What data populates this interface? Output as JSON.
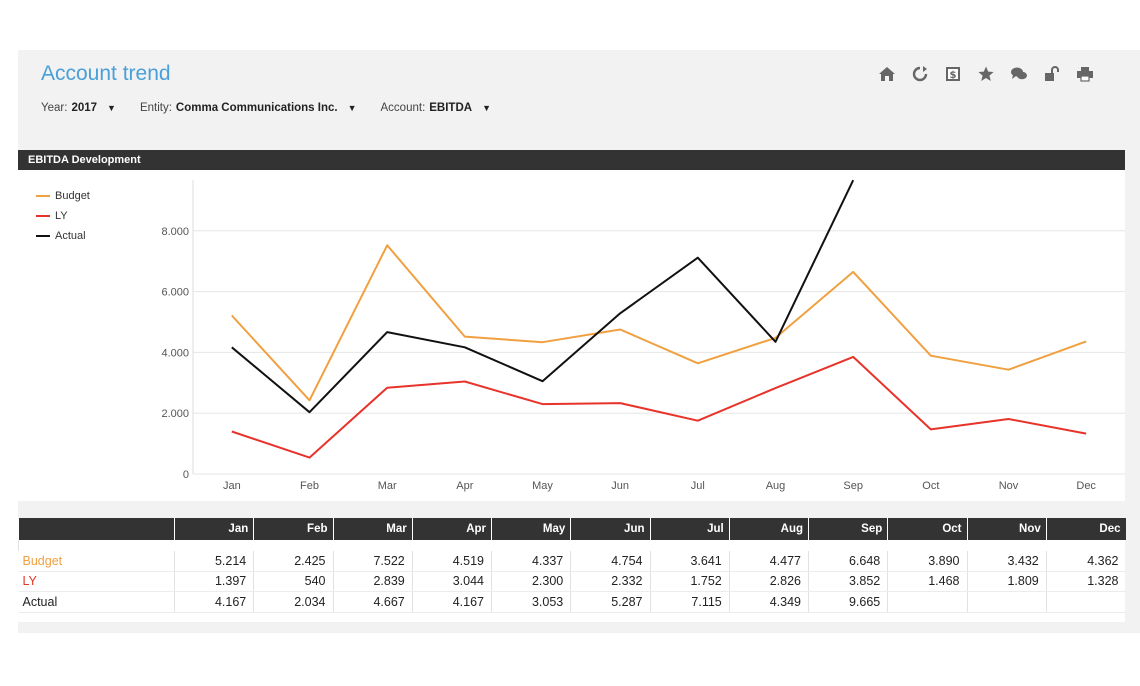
{
  "header": {
    "title": "Account trend",
    "filters": [
      {
        "label": "Year:",
        "value": "2017"
      },
      {
        "label": "Entity:",
        "value": "Comma Communications Inc."
      },
      {
        "label": "Account:",
        "value": "EBITDA"
      }
    ],
    "toolbar_icons": [
      "home-icon",
      "refresh-icon",
      "dollar-icon",
      "star-icon",
      "comments-icon",
      "unlock-icon",
      "print-icon"
    ]
  },
  "chart_section": {
    "title": "EBITDA Development"
  },
  "colors": {
    "title": "#4a9fd8",
    "budget": "#f0a040",
    "ly": "#e8332a",
    "actual": "#111111",
    "header_bg": "#333333"
  },
  "chart_data": {
    "type": "line",
    "categories": [
      "Jan",
      "Feb",
      "Mar",
      "Apr",
      "May",
      "Jun",
      "Jul",
      "Aug",
      "Sep",
      "Oct",
      "Nov",
      "Dec"
    ],
    "series": [
      {
        "name": "Budget",
        "values": [
          5214,
          2425,
          7522,
          4519,
          4337,
          4754,
          3641,
          4477,
          6648,
          3890,
          3432,
          4362
        ]
      },
      {
        "name": "LY",
        "values": [
          1397,
          540,
          2839,
          3044,
          2300,
          2332,
          1752,
          2826,
          3852,
          1468,
          1809,
          1328
        ]
      },
      {
        "name": "Actual",
        "values": [
          4167,
          2034,
          4667,
          4167,
          3053,
          5287,
          7115,
          4349,
          9665,
          null,
          null,
          null
        ]
      }
    ],
    "yticks": [
      "0",
      "2.000",
      "4.000",
      "6.000",
      "8.000"
    ],
    "ylim": [
      0,
      10000
    ],
    "grid": true,
    "legend_position": "top-left"
  },
  "table": {
    "columns": [
      "Jan",
      "Feb",
      "Mar",
      "Apr",
      "May",
      "Jun",
      "Jul",
      "Aug",
      "Sep",
      "Oct",
      "Nov",
      "Dec"
    ],
    "rows": [
      {
        "label": "Budget",
        "values": [
          "5.214",
          "2.425",
          "7.522",
          "4.519",
          "4.337",
          "4.754",
          "3.641",
          "4.477",
          "6.648",
          "3.890",
          "3.432",
          "4.362"
        ]
      },
      {
        "label": "LY",
        "values": [
          "1.397",
          "540",
          "2.839",
          "3.044",
          "2.300",
          "2.332",
          "1.752",
          "2.826",
          "3.852",
          "1.468",
          "1.809",
          "1.328"
        ]
      },
      {
        "label": "Actual",
        "values": [
          "4.167",
          "2.034",
          "4.667",
          "4.167",
          "3.053",
          "5.287",
          "7.115",
          "4.349",
          "9.665",
          "",
          "",
          ""
        ]
      }
    ]
  }
}
